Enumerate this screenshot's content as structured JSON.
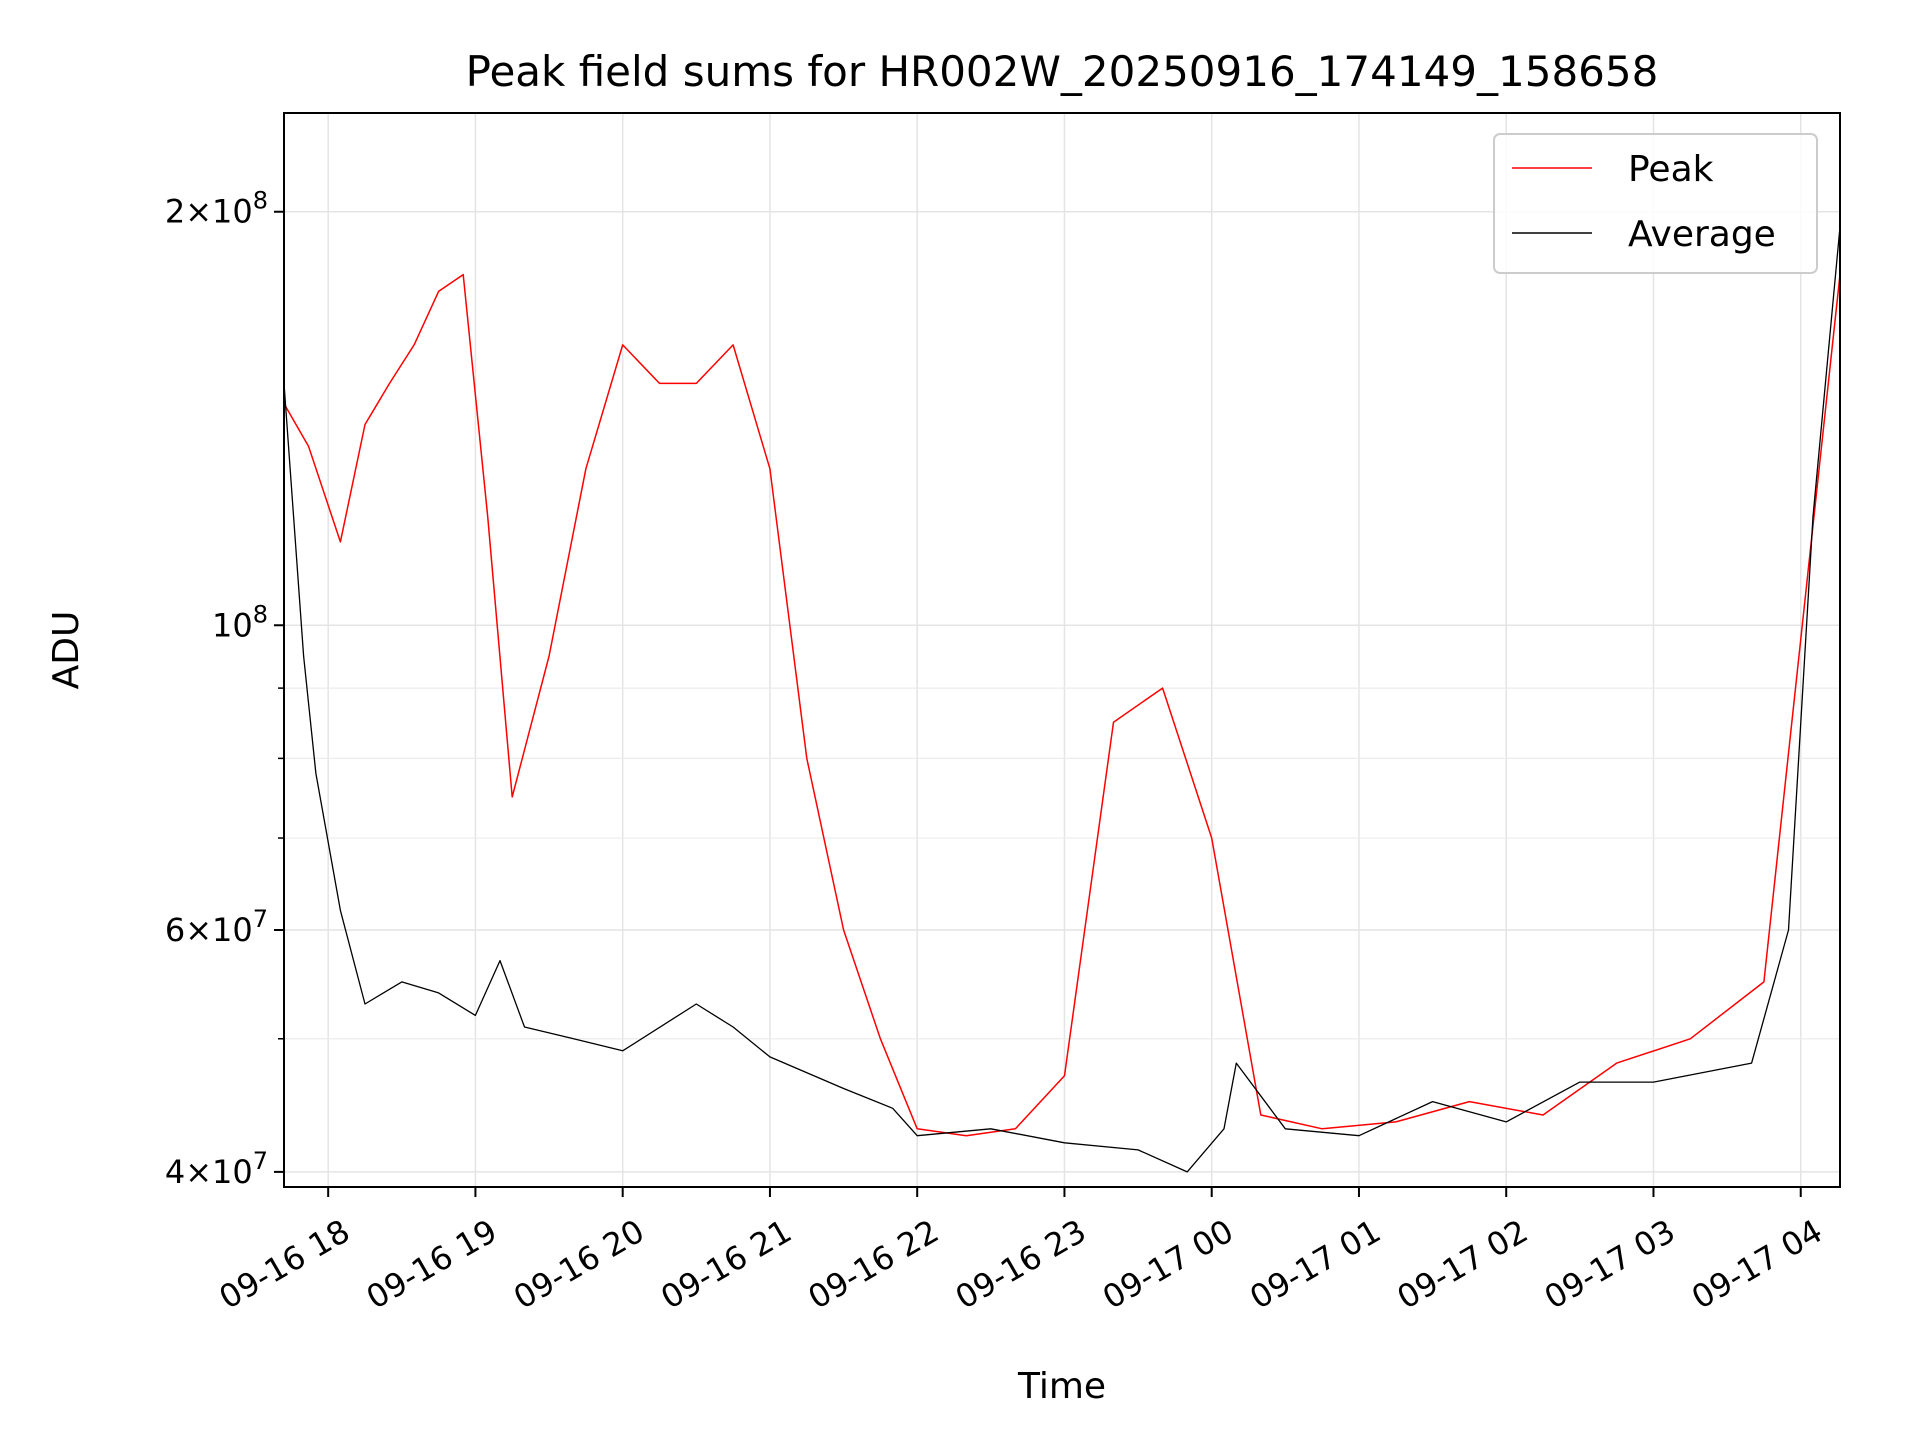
{
  "chart_data": {
    "type": "line",
    "title": "Peak field sums for HR002W_20250916_174149_158658",
    "xlabel": "Time",
    "ylabel": "ADU",
    "yscale": "log",
    "ylim": [
      39000000,
      236000000
    ],
    "xlim": [
      "2025-09-16 17:42",
      "2025-09-17 04:16"
    ],
    "grid": true,
    "legend_position": "top-right",
    "x_ticks": [
      "09-16 18",
      "09-16 19",
      "09-16 20",
      "09-16 21",
      "09-16 22",
      "09-16 23",
      "09-17 00",
      "09-17 01",
      "09-17 02",
      "09-17 03",
      "09-17 04"
    ],
    "y_ticks": [
      {
        "value": 40000000,
        "mantissa": "4",
        "exp": "7"
      },
      {
        "value": 60000000,
        "mantissa": "6",
        "exp": "7"
      },
      {
        "value": 100000000,
        "mantissa": "",
        "exp": "8"
      },
      {
        "value": 200000000,
        "mantissa": "2",
        "exp": "8"
      }
    ],
    "y_minor_ticks": [
      50000000,
      70000000,
      80000000,
      90000000
    ],
    "series": [
      {
        "name": "Peak",
        "color": "#ff0000",
        "x": [
          "2025-09-16 17:42",
          "2025-09-16 17:52",
          "2025-09-16 18:05",
          "2025-09-16 18:15",
          "2025-09-16 18:25",
          "2025-09-16 18:35",
          "2025-09-16 18:45",
          "2025-09-16 18:55",
          "2025-09-16 19:05",
          "2025-09-16 19:15",
          "2025-09-16 19:30",
          "2025-09-16 19:45",
          "2025-09-16 20:00",
          "2025-09-16 20:15",
          "2025-09-16 20:30",
          "2025-09-16 20:45",
          "2025-09-16 21:00",
          "2025-09-16 21:15",
          "2025-09-16 21:30",
          "2025-09-16 21:45",
          "2025-09-16 22:00",
          "2025-09-16 22:20",
          "2025-09-16 22:40",
          "2025-09-16 23:00",
          "2025-09-16 23:20",
          "2025-09-16 23:40",
          "2025-09-17 00:00",
          "2025-09-17 00:20",
          "2025-09-17 00:45",
          "2025-09-17 01:15",
          "2025-09-17 01:45",
          "2025-09-17 02:15",
          "2025-09-17 02:45",
          "2025-09-17 03:15",
          "2025-09-17 03:45",
          "2025-09-17 04:16"
        ],
        "y": [
          145000000,
          135000000,
          115000000,
          140000000,
          150000000,
          160000000,
          175000000,
          180000000,
          120000000,
          75000000,
          95000000,
          130000000,
          160000000,
          150000000,
          150000000,
          160000000,
          130000000,
          80000000,
          60000000,
          50000000,
          43000000,
          42500000,
          43000000,
          47000000,
          85000000,
          90000000,
          70000000,
          44000000,
          43000000,
          43500000,
          45000000,
          44000000,
          48000000,
          50000000,
          55000000,
          180000000
        ]
      },
      {
        "name": "Average",
        "color": "#000000",
        "x": [
          "2025-09-16 17:42",
          "2025-09-16 17:50",
          "2025-09-16 17:55",
          "2025-09-16 18:05",
          "2025-09-16 18:15",
          "2025-09-16 18:30",
          "2025-09-16 18:45",
          "2025-09-16 19:00",
          "2025-09-16 19:10",
          "2025-09-16 19:20",
          "2025-09-16 19:40",
          "2025-09-16 20:00",
          "2025-09-16 20:30",
          "2025-09-16 20:45",
          "2025-09-16 21:00",
          "2025-09-16 21:30",
          "2025-09-16 21:50",
          "2025-09-16 22:00",
          "2025-09-16 22:30",
          "2025-09-16 23:00",
          "2025-09-16 23:30",
          "2025-09-16 23:50",
          "2025-09-17 00:05",
          "2025-09-17 00:10",
          "2025-09-17 00:30",
          "2025-09-17 01:00",
          "2025-09-17 01:30",
          "2025-09-17 02:00",
          "2025-09-17 02:30",
          "2025-09-17 03:00",
          "2025-09-17 03:40",
          "2025-09-17 03:55",
          "2025-09-17 04:05",
          "2025-09-17 04:16"
        ],
        "y": [
          150000000,
          95000000,
          78000000,
          62000000,
          53000000,
          55000000,
          54000000,
          52000000,
          57000000,
          51000000,
          50000000,
          49000000,
          53000000,
          51000000,
          48500000,
          46000000,
          44500000,
          42500000,
          43000000,
          42000000,
          41500000,
          40000000,
          43000000,
          48000000,
          43000000,
          42500000,
          45000000,
          43500000,
          46500000,
          46500000,
          48000000,
          60000000,
          120000000,
          195000000
        ]
      }
    ]
  }
}
